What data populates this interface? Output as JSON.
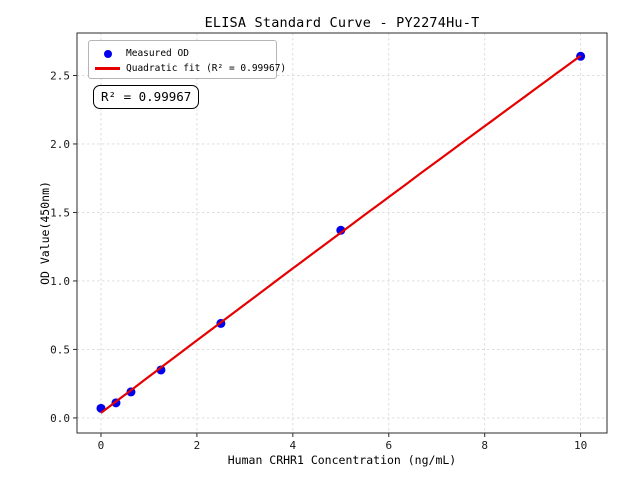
{
  "title": "ELISA Standard Curve - PY2274Hu-T",
  "legend": {
    "measured_label": "Measured OD",
    "fit_label": "Quadratic fit (R² = 0.99967)"
  },
  "annotation": {
    "r_squared_text": "R² = 0.99967"
  },
  "chart_data": {
    "type": "scatter",
    "title": "ELISA Standard Curve - PY2274Hu-T",
    "xlabel": "Human CRHR1 Concentration (ng/mL)",
    "ylabel": "OD Value(450nm)",
    "x": [
      0,
      0.3125,
      0.625,
      1.25,
      2.5,
      5,
      10
    ],
    "series": [
      {
        "name": "Measured OD",
        "kind": "scatter",
        "marker": "circle",
        "color": "#0000ee",
        "values": [
          0.07,
          0.11,
          0.19,
          0.35,
          0.69,
          1.37,
          2.64
        ]
      },
      {
        "name": "Quadratic fit (R² = 0.99967)",
        "kind": "line",
        "fit": "quadratic",
        "color": "#e60000",
        "r_squared_label": "0.99967"
      }
    ],
    "xlim": [
      -0.5,
      10.55
    ],
    "ylim": [
      -0.11,
      2.81
    ],
    "xticks": [
      0,
      2,
      4,
      6,
      8,
      10
    ],
    "xtick_labels": [
      "0",
      "2",
      "4",
      "6",
      "8",
      "10"
    ],
    "yticks": [
      0,
      0.5,
      1.0,
      1.5,
      2.0,
      2.5
    ],
    "ytick_labels": [
      "0.0",
      "0.5",
      "1.0",
      "1.5",
      "2.0",
      "2.5"
    ],
    "grid": true,
    "grid_style": "dashed",
    "legend_position": "upper left",
    "colors": {
      "grid": "#d9d9d9",
      "spine": "#2b2b2b",
      "tick_label": "#1a1a1a",
      "background": "#ffffff"
    }
  }
}
